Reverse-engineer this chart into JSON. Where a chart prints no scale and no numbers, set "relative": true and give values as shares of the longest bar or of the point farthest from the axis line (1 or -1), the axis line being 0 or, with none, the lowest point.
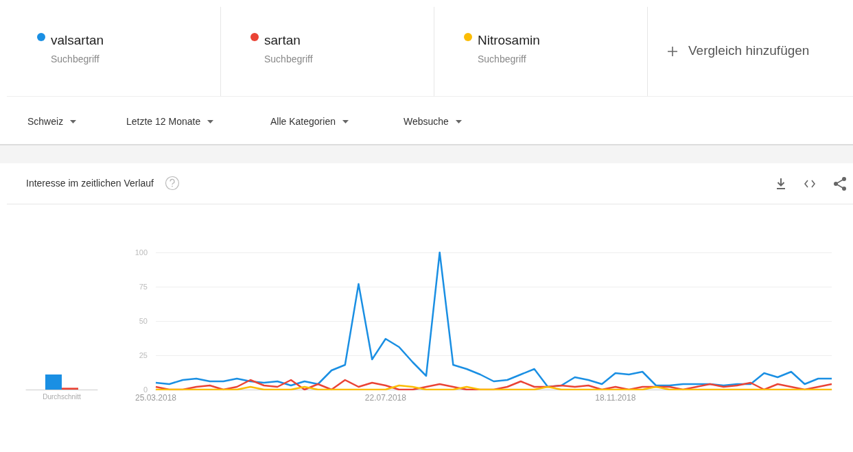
{
  "chart_data": [
    {
      "type": "bar",
      "categories": [
        "Durchschnitt"
      ],
      "relative": true,
      "series": [
        {
          "color": "#1a8fe3",
          "values": [
            1
          ]
        },
        {
          "color": "#ea4335",
          "values": [
            0.12
          ]
        }
      ]
    },
    {
      "type": "line",
      "title": "Interesse im zeitlichen Verlauf",
      "categories": [
        "25.03.2018",
        null,
        null,
        null,
        null,
        null,
        null,
        null,
        null,
        null,
        null,
        null,
        null,
        null,
        null,
        null,
        null,
        "22.07.2018",
        null,
        null,
        null,
        null,
        null,
        null,
        null,
        null,
        null,
        null,
        null,
        null,
        null,
        null,
        null,
        null,
        "18.11.2018",
        null,
        null,
        null,
        null,
        null,
        null,
        null,
        null,
        null,
        null,
        null,
        null,
        null,
        null,
        null,
        null
      ],
      "series": [
        {
          "name": "valsartan",
          "color": "#1a8fe3",
          "values": [
            5,
            4,
            7,
            8,
            6,
            6,
            8,
            6,
            5,
            6,
            3,
            6,
            4,
            14,
            18,
            77,
            22,
            37,
            31,
            20,
            10,
            100,
            18,
            15,
            11,
            6,
            7,
            11,
            15,
            2,
            3,
            9,
            7,
            4,
            12,
            11,
            13,
            3,
            3,
            4,
            4,
            4,
            3,
            4,
            4,
            12,
            9,
            13,
            4,
            8,
            8
          ]
        },
        {
          "name": "sartan",
          "color": "#ea4335",
          "values": [
            2,
            0,
            0,
            2,
            3,
            0,
            2,
            7,
            3,
            2,
            7,
            0,
            4,
            0,
            7,
            2,
            5,
            3,
            0,
            0,
            2,
            4,
            2,
            0,
            0,
            0,
            2,
            6,
            2,
            2,
            3,
            2,
            3,
            0,
            2,
            0,
            2,
            2,
            2,
            0,
            2,
            4,
            2,
            3,
            5,
            0,
            4,
            2,
            0,
            2,
            4
          ]
        },
        {
          "name": "Nitrosamin",
          "color": "#fbbc04",
          "values": [
            0,
            0,
            0,
            0,
            0,
            0,
            0,
            2,
            0,
            0,
            0,
            2,
            0,
            0,
            0,
            0,
            0,
            0,
            3,
            2,
            0,
            0,
            0,
            2,
            0,
            0,
            0,
            0,
            0,
            2,
            0,
            0,
            0,
            0,
            0,
            0,
            0,
            2,
            0,
            0,
            0,
            0,
            0,
            0,
            0,
            0,
            0,
            0,
            0,
            0,
            0
          ]
        }
      ],
      "ylim": [
        0,
        100
      ],
      "yticks": [
        0,
        25,
        50,
        75,
        100
      ],
      "grid": "y",
      "legend": "top",
      "marker": "none",
      "line_style": "solid",
      "annotations": [
        "Suchbegriff",
        "Suchbegriff",
        "Suchbegriff",
        "Vergleich hinzufügen",
        "Schweiz",
        "Letzte 12 Monate",
        "Alle Kategorien",
        "Websuche"
      ]
    }
  ]
}
